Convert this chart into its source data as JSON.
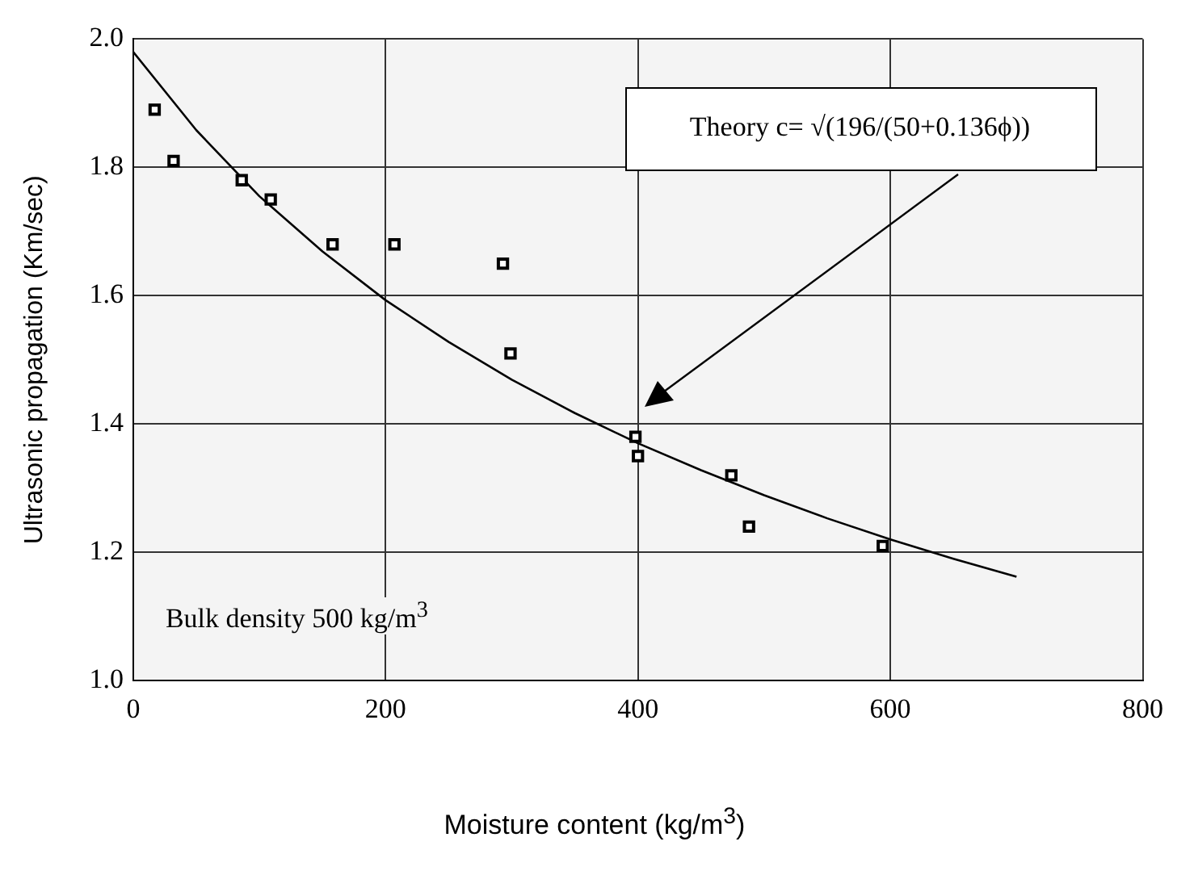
{
  "chart_data": {
    "type": "scatter",
    "xlabel": "Moisture content  (kg/m$^{3}$)",
    "ylabel": "Ultrasonic propagation (Km/sec)",
    "xlim": [
      0,
      800
    ],
    "xticks": [
      0,
      200,
      400,
      600,
      800
    ],
    "ylim": [
      1.0,
      2.0
    ],
    "yticks": [
      {
        "value": 1.0,
        "label": "1.0"
      },
      1.2,
      1.4,
      1.6,
      1.8,
      {
        "value": 2.0,
        "label": "2.0"
      }
    ],
    "grid": true,
    "legend": false,
    "series": [
      {
        "color": "#000000",
        "marker": "square",
        "x": [
          17,
          32,
          86,
          109,
          158,
          207,
          293,
          299,
          398,
          400,
          474,
          488,
          594
        ],
        "values": [
          1.89,
          1.81,
          1.78,
          1.75,
          1.68,
          1.68,
          1.65,
          1.51,
          1.38,
          1.35,
          1.32,
          1.24,
          1.21
        ]
      },
      {
        "type": "line",
        "color": "#000000",
        "marker": "none",
        "line_style": "solid",
        "x": [
          0,
          50,
          100,
          150,
          200,
          250,
          300,
          350,
          400,
          450,
          500,
          550,
          600,
          650,
          700
        ],
        "values": [
          1.98,
          1.858,
          1.755,
          1.669,
          1.593,
          1.528,
          1.469,
          1.417,
          1.37,
          1.328,
          1.289,
          1.253,
          1.22,
          1.19,
          1.162
        ]
      }
    ],
    "annotations": [
      "Theory c= √(196/(50+0.136ϕ))",
      "Bulk density 500 kg/m$^{3}$"
    ]
  }
}
